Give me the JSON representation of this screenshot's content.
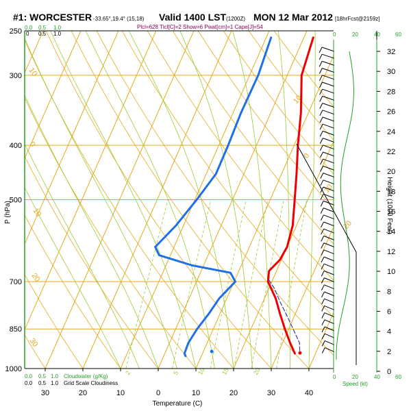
{
  "header": {
    "station": "#1: WORCESTER",
    "coords": "-33.65°,19.4° (15,18)",
    "valid": "Valid 1400 LST",
    "utc": "(1200Z)",
    "date": "MON 12 Mar 2012",
    "forecast": "[18hrFcst@2159z]",
    "indices": "Plcl=628 Tlcl[C]=2 Show=6 Pwat[cm]=1 Cape[J]=54"
  },
  "chart_data": {
    "type": "line",
    "title": "#1: WORCESTER Valid 1400 LST MON 12 Mar 2012",
    "xlabel": "Temperature (C)",
    "ylabel": "P (hPa)",
    "right_axis_label": "Height (1000 Feet)",
    "temp_ticks": [
      -30,
      -20,
      -10,
      0,
      10,
      20,
      30,
      40
    ],
    "temp_tick_labels": [
      "30",
      "20",
      "10",
      "0",
      "10",
      "20",
      "30",
      "40"
    ],
    "pressure_ticks": [
      250,
      300,
      400,
      500,
      700,
      850,
      1000
    ],
    "height_ticks": [
      0,
      2,
      4,
      6,
      8,
      10,
      12,
      14,
      16,
      18,
      20,
      22,
      24,
      26,
      28,
      30,
      32
    ],
    "xlim": [
      -36,
      46
    ],
    "ylim": [
      1000,
      250
    ],
    "series": [
      {
        "name": "Temperature",
        "color": "#ee0000",
        "points": [
          [
            2.5,
            257
          ],
          [
            3.8,
            300
          ],
          [
            8,
            350
          ],
          [
            11,
            400
          ],
          [
            14,
            450
          ],
          [
            16.5,
            500
          ],
          [
            19,
            556
          ],
          [
            20,
            607
          ],
          [
            19.6,
            640
          ],
          [
            18,
            670
          ],
          [
            19,
            700
          ],
          [
            23,
            750
          ],
          [
            26,
            800
          ],
          [
            29,
            850
          ],
          [
            32,
            900
          ],
          [
            34.5,
            940
          ]
        ]
      },
      {
        "name": "Dewpoint",
        "color": "#1f6fe5",
        "points": [
          [
            -8.7,
            257
          ],
          [
            -7.7,
            300
          ],
          [
            -7.9,
            350
          ],
          [
            -7.5,
            400
          ],
          [
            -7.4,
            450
          ],
          [
            -9.5,
            500
          ],
          [
            -12,
            556
          ],
          [
            -15,
            607
          ],
          [
            -13,
            628
          ],
          [
            -3,
            655
          ],
          [
            8,
            675
          ],
          [
            10.3,
            700
          ],
          [
            8,
            750
          ],
          [
            7,
            800
          ],
          [
            5.7,
            850
          ],
          [
            5,
            900
          ],
          [
            5.2,
            940
          ],
          [
            5.8,
            950
          ]
        ]
      },
      {
        "name": "Parcel",
        "color": "#3b3bb0",
        "points": [
          [
            19,
            695
          ],
          [
            21.5,
            720
          ],
          [
            24.5,
            760
          ],
          [
            28,
            805
          ],
          [
            31.5,
            855
          ],
          [
            34.5,
            900
          ],
          [
            35.5,
            930
          ]
        ]
      }
    ],
    "surface_points": [
      {
        "name": "Surface temperature",
        "temp": 35.8,
        "pressure": 938,
        "color": "#ee0000"
      },
      {
        "name": "Surface dewpoint",
        "temp": 12.2,
        "pressure": 932,
        "color": "#1f6fe5"
      }
    ],
    "isotherm_labels": [
      "10",
      "0",
      "10",
      "20",
      "30"
    ],
    "dry_adiabat_labels": [
      "10",
      "0",
      "10",
      "20",
      "30"
    ],
    "mixing_ratio_labels": [
      "2",
      "5",
      "10",
      "15",
      "20"
    ]
  },
  "top_scale": {
    "values": [
      "0",
      "0.5",
      "1.0"
    ],
    "values_green": [
      "0.0",
      "0.5",
      "1.0"
    ],
    "speed": [
      "0",
      "20",
      "40",
      "60"
    ]
  },
  "bottom_scale": {
    "cloudwater_values": [
      "0.0",
      "0.5",
      "1.0"
    ],
    "cloudwater_label": "Cloudwater (g/Kg)",
    "cloudiness_values": [
      "0.0",
      "0.5",
      "1.0"
    ],
    "cloudiness_label": "Grid Scale Cloudiness",
    "speed_values": [
      "0",
      "20",
      "40",
      "60"
    ],
    "speed_label": "Speed (kt)"
  },
  "colors": {
    "isotherm": "#e6a91a",
    "mixing_ratio": "#9acd32",
    "green": "#22a022",
    "temp": "#ee0000",
    "dewpoint": "#1f6fe5"
  }
}
